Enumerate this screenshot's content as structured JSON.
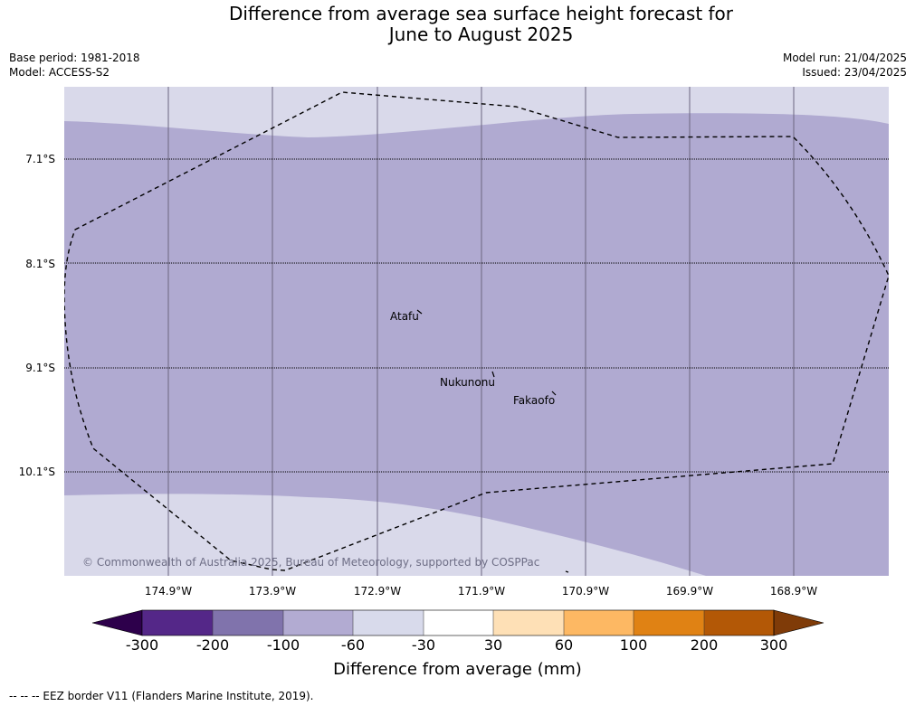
{
  "header": {
    "title_line1": "Difference from average sea surface height forecast for",
    "title_line2": "June to August 2025",
    "base_period": "Base period: 1981-2018",
    "model": "Model: ACCESS-S2",
    "model_run": "Model run: 21/04/2025",
    "issued": "Issued: 23/04/2025"
  },
  "map": {
    "latitude_labels": [
      "7.1°S",
      "8.1°S",
      "9.1°S",
      "10.1°S"
    ],
    "longitude_labels": [
      "174.9°W",
      "173.9°W",
      "172.9°W",
      "171.9°W",
      "170.9°W",
      "169.9°W",
      "168.9°W"
    ],
    "places": [
      "Atafu",
      "Nukunonu",
      "Fakaofo"
    ],
    "copyright": "© Commonwealth of Australia 2025, Bureau of Meteorology, supported by COSPPac",
    "colors": {
      "field_main": "#b0aad1",
      "field_light": "#d9d9ea"
    }
  },
  "colorbar": {
    "tick_labels": [
      "-300",
      "-200",
      "-100",
      "-60",
      "-30",
      "30",
      "60",
      "100",
      "200",
      "300"
    ],
    "label": "Difference from average (mm)",
    "colors": {
      "below_min": "#2d004b",
      "bins": [
        "#542788",
        "#8073ac",
        "#b2abd2",
        "#d8daeb",
        "#ffffff",
        "#fee0b6",
        "#fdb863",
        "#e08214",
        "#b35806"
      ],
      "above_max": "#7f3b08"
    }
  },
  "legend_footnote": "--  --  -- EEZ border V11 (Flanders Marine Institute, 2019)."
}
